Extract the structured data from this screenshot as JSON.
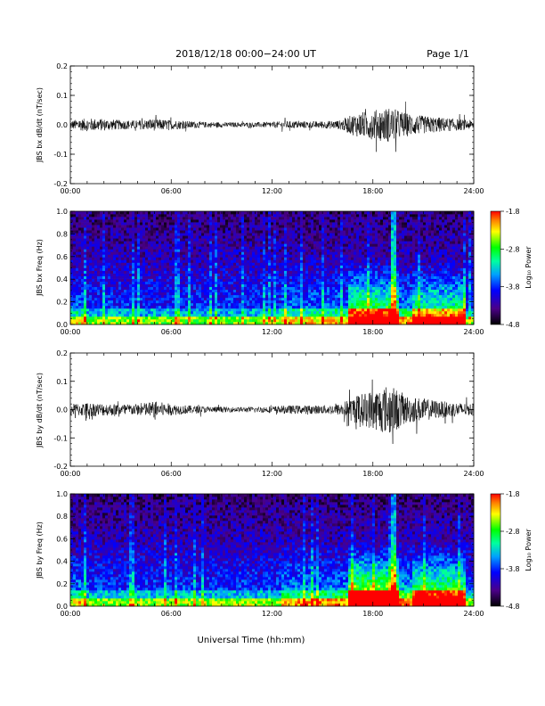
{
  "header": {
    "title": "2018/12/18  00:00−24:00 UT",
    "page": "Page 1/1"
  },
  "xlabel": "Universal Time (hh:mm)",
  "chart_data": [
    {
      "type": "line",
      "ylabel": "JBS bx dB/dt (nT/sec)",
      "xlim": [
        "00:00",
        "24:00"
      ],
      "ylim": [
        -0.2,
        0.2
      ],
      "xticks": [
        "00:00",
        "06:00",
        "12:00",
        "18:00",
        "24:00"
      ],
      "yticks": [
        "-0.2",
        "-0.1",
        "0.0",
        "0.1",
        "0.2"
      ],
      "x": [
        "00:00",
        "01:00",
        "02:00",
        "03:00",
        "04:00",
        "05:00",
        "06:00",
        "07:00",
        "08:00",
        "09:00",
        "10:00",
        "11:00",
        "12:00",
        "13:00",
        "14:00",
        "15:00",
        "16:00",
        "17:00",
        "18:00",
        "19:00",
        "20:00",
        "21:00",
        "22:00",
        "23:00",
        "24:00"
      ],
      "amplitude": [
        0.015,
        0.022,
        0.02,
        0.016,
        0.015,
        0.02,
        0.016,
        0.013,
        0.01,
        0.009,
        0.008,
        0.009,
        0.01,
        0.013,
        0.012,
        0.012,
        0.015,
        0.04,
        0.05,
        0.06,
        0.04,
        0.03,
        0.025,
        0.02,
        0.015
      ]
    },
    {
      "type": "heatmap",
      "ylabel": "JBS bx Freq (Hz)",
      "xlim": [
        "00:00",
        "24:00"
      ],
      "ylim": [
        0.0,
        1.0
      ],
      "xticks": [
        "00:00",
        "06:00",
        "12:00",
        "18:00",
        "24:00"
      ],
      "yticks": [
        "0.0",
        "0.2",
        "0.4",
        "0.6",
        "0.8",
        "1.0"
      ],
      "colorbar": {
        "label": "Log₁₀ Power",
        "ticks": [
          "-1.8",
          "-2.8",
          "-3.8",
          "-4.8"
        ],
        "range": [
          -4.8,
          -1.8
        ]
      }
    },
    {
      "type": "line",
      "ylabel": "JBS by dB/dt (nT/sec)",
      "xlim": [
        "00:00",
        "24:00"
      ],
      "ylim": [
        -0.2,
        0.2
      ],
      "xticks": [
        "00:00",
        "06:00",
        "12:00",
        "18:00",
        "24:00"
      ],
      "yticks": [
        "-0.2",
        "-0.1",
        "0.0",
        "0.1",
        "0.2"
      ],
      "x": [
        "00:00",
        "01:00",
        "02:00",
        "03:00",
        "04:00",
        "05:00",
        "06:00",
        "07:00",
        "08:00",
        "09:00",
        "10:00",
        "11:00",
        "12:00",
        "13:00",
        "14:00",
        "15:00",
        "16:00",
        "17:00",
        "18:00",
        "19:00",
        "20:00",
        "21:00",
        "22:00",
        "23:00",
        "24:00"
      ],
      "amplitude": [
        0.02,
        0.025,
        0.022,
        0.02,
        0.02,
        0.03,
        0.02,
        0.015,
        0.012,
        0.01,
        0.009,
        0.01,
        0.012,
        0.015,
        0.015,
        0.015,
        0.02,
        0.05,
        0.07,
        0.09,
        0.05,
        0.04,
        0.03,
        0.025,
        0.02
      ]
    },
    {
      "type": "heatmap",
      "ylabel": "JBS by Freq (Hz)",
      "xlim": [
        "00:00",
        "24:00"
      ],
      "ylim": [
        0.0,
        1.0
      ],
      "xticks": [
        "00:00",
        "06:00",
        "12:00",
        "18:00",
        "24:00"
      ],
      "yticks": [
        "0.0",
        "0.2",
        "0.4",
        "0.6",
        "0.8",
        "1.0"
      ],
      "colorbar": {
        "label": "Log₁₀ Power",
        "ticks": [
          "-1.8",
          "-2.8",
          "-3.8",
          "-4.8"
        ],
        "range": [
          -4.8,
          -1.8
        ]
      }
    }
  ]
}
